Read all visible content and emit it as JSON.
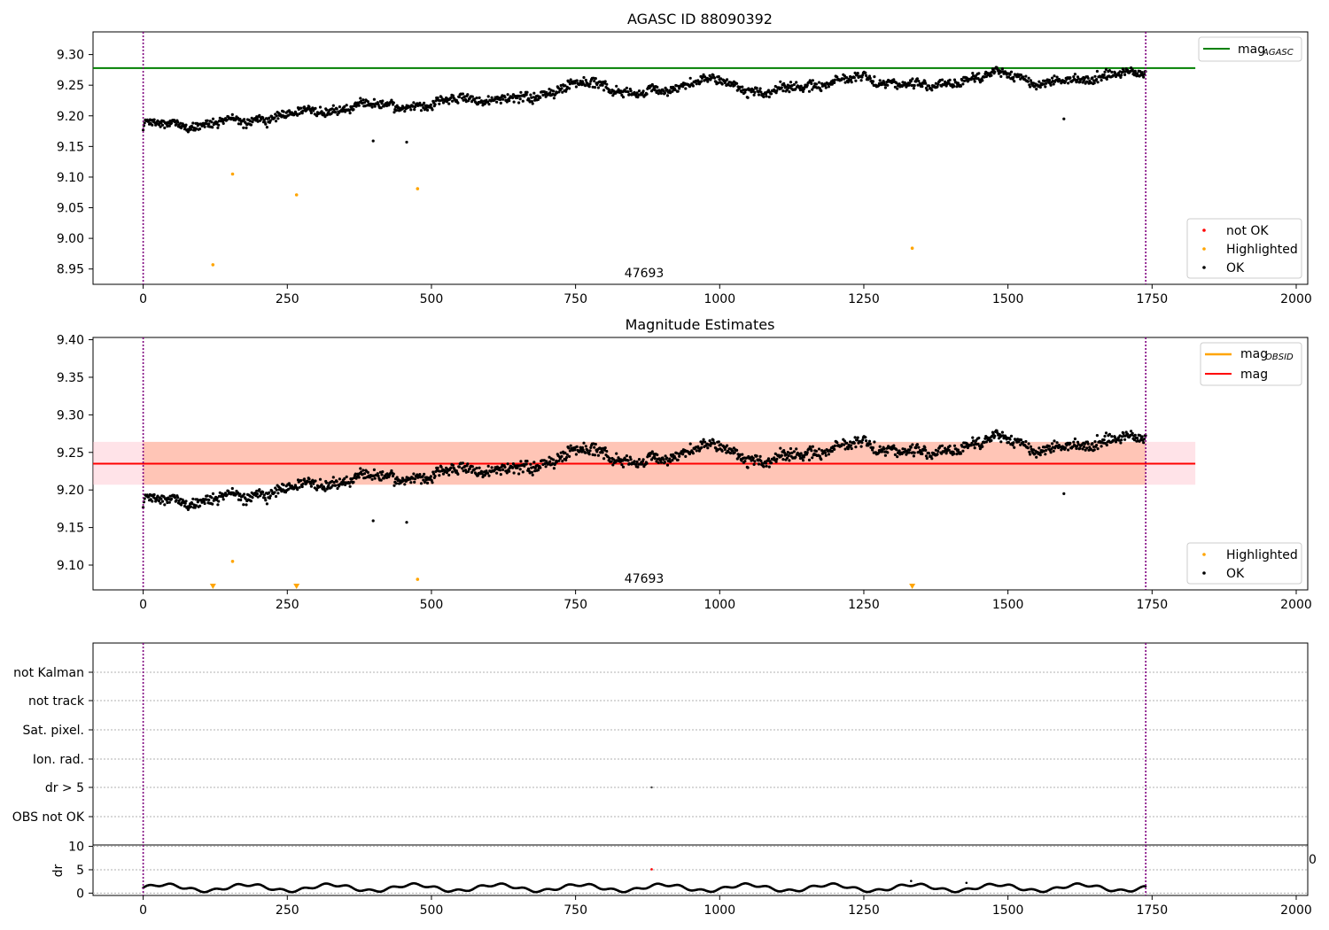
{
  "colors": {
    "ok": "#000000",
    "not_ok": "#ff0000",
    "highlighted": "#ffa500",
    "agasc_line": "#008000",
    "mag_line": "#ff0000",
    "obsid_line": "#ffa500",
    "band_pink": "#ffc0cb",
    "band_orange": "#ffa07a",
    "obsid_boundary": "#800080",
    "grid": "#b0b0b0"
  },
  "chart_data": [
    {
      "type": "scatter",
      "title": "AGASC ID 88090392",
      "xlim": [
        -87,
        2020
      ],
      "ylim": [
        8.925,
        9.337
      ],
      "xticks": [
        0,
        250,
        500,
        750,
        1000,
        1250,
        1500,
        1750,
        2000
      ],
      "yticks": [
        8.95,
        9.0,
        9.05,
        9.1,
        9.15,
        9.2,
        9.25,
        9.3
      ],
      "ytick_labels": [
        "8.95",
        "9.00",
        "9.05",
        "9.10",
        "9.15",
        "9.20",
        "9.25",
        "9.30"
      ],
      "obsid_boundaries": [
        0,
        1739
      ],
      "obsid_labels": [
        {
          "x": 869,
          "text": "47693"
        }
      ],
      "hlines": [
        {
          "name": "mag_agasc",
          "y": 9.278,
          "x0": -87,
          "x1": 1825
        }
      ],
      "legend_top": {
        "placement": "upper right",
        "entries": [
          "mag",
          "AGASC"
        ]
      },
      "legend_bottom": {
        "placement": "lower right",
        "entries": [
          "not OK",
          "Highlighted",
          "OK"
        ]
      },
      "highlighted_points": [
        [
          121,
          8.957
        ],
        [
          155,
          9.105
        ],
        [
          266,
          9.071
        ],
        [
          476,
          9.081
        ],
        [
          1334,
          8.984
        ]
      ],
      "ok_outliers": [
        [
          399,
          9.159
        ],
        [
          457,
          9.157
        ],
        [
          1597,
          9.195
        ]
      ]
    },
    {
      "type": "scatter",
      "title": "Magnitude Estimates",
      "xlim": [
        -87,
        2020
      ],
      "ylim": [
        9.067,
        9.403
      ],
      "xticks": [
        0,
        250,
        500,
        750,
        1000,
        1250,
        1500,
        1750,
        2000
      ],
      "yticks": [
        9.1,
        9.15,
        9.2,
        9.25,
        9.3,
        9.35,
        9.4
      ],
      "ytick_labels": [
        "9.10",
        "9.15",
        "9.20",
        "9.25",
        "9.30",
        "9.35",
        "9.40"
      ],
      "obsid_boundaries": [
        0,
        1739
      ],
      "obsid_labels": [
        {
          "x": 869,
          "text": "47693"
        }
      ],
      "mag": 9.235,
      "mag_band": [
        9.207,
        9.264
      ],
      "band_x": [
        -87,
        1825
      ],
      "obsid_band_x": [
        0,
        1739
      ],
      "legend_top": {
        "placement": "upper right",
        "entries": [
          "mag",
          "OBSID",
          "mag"
        ]
      },
      "legend_bottom": {
        "placement": "lower right",
        "entries": [
          "Highlighted",
          "OK"
        ]
      },
      "highlighted_points": [
        [
          155,
          9.105
        ],
        [
          476,
          9.081
        ]
      ],
      "clipped_markers_x": [
        121,
        266,
        1334
      ],
      "ok_outliers": [
        [
          399,
          9.159
        ],
        [
          457,
          9.157
        ],
        [
          1597,
          9.195
        ]
      ]
    },
    {
      "type": "flags",
      "categories": [
        "not Kalman",
        "not track",
        "Sat. pixel.",
        "Ion. rad.",
        "dr > 5",
        "OBS not OK"
      ],
      "flag_points": [
        {
          "category": "dr > 5",
          "x": 882
        }
      ],
      "obsid_boundaries": [
        0,
        1739
      ],
      "edge_tick_text": "0"
    },
    {
      "type": "line",
      "ylabel": "dr",
      "xlim": [
        -87,
        2020
      ],
      "ylim": [
        -0.5,
        10.3
      ],
      "xticks": [
        0,
        250,
        500,
        750,
        1000,
        1250,
        1500,
        1750,
        2000
      ],
      "yticks": [
        0,
        5,
        10
      ],
      "ytick_labels": [
        "0",
        "5",
        "10"
      ],
      "obsid_boundaries": [
        0,
        1739
      ],
      "dr_baseline": [
        0.2,
        2.1
      ],
      "outliers": [
        [
          882,
          5.1
        ],
        [
          1332,
          2.6
        ],
        [
          1428,
          2.2
        ]
      ]
    }
  ]
}
